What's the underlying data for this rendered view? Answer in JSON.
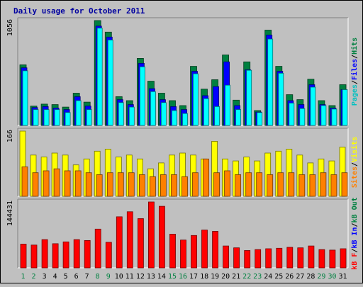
{
  "chart_data": {
    "type": "bar",
    "title": "Daily usage for October 2011",
    "categories": [
      "1",
      "2",
      "3",
      "4",
      "5",
      "6",
      "7",
      "8",
      "9",
      "10",
      "11",
      "12",
      "13",
      "14",
      "15",
      "16",
      "17",
      "18",
      "19",
      "20",
      "21",
      "22",
      "23",
      "24",
      "25",
      "26",
      "27",
      "28",
      "29",
      "30",
      "31"
    ],
    "weekend_days": [
      "1",
      "2",
      "8",
      "9",
      "15",
      "16",
      "22",
      "23",
      "29",
      "30"
    ],
    "panels": [
      {
        "id": "hits",
        "ymax_label": "1056",
        "ymax": 1056,
        "series": [
          {
            "name": "Hits",
            "color": "#008040",
            "values": [
              610,
              195,
              215,
              210,
              185,
              325,
              235,
              1056,
              940,
              290,
              250,
              675,
              445,
              325,
              250,
              200,
              595,
              365,
              460,
              710,
              255,
              640,
              150,
              960,
              595,
              310,
              260,
              465,
              250,
              200,
              410
            ]
          },
          {
            "name": "Files",
            "color": "#0000ff",
            "values": [
              580,
              180,
              190,
              175,
              160,
              290,
              195,
              1000,
              890,
              260,
              210,
              625,
              370,
              260,
              190,
              160,
              545,
              300,
              390,
              640,
              200,
              560,
              135,
              910,
              545,
              250,
              210,
              410,
              210,
              175,
              360
            ]
          },
          {
            "name": "Pages",
            "color": "#00ffff",
            "values": [
              550,
              160,
              160,
              160,
              130,
              250,
              160,
              980,
              860,
              230,
              185,
              590,
              340,
              230,
              150,
              120,
              520,
              270,
              190,
              405,
              160,
              555,
              130,
              870,
              525,
              225,
              170,
              385,
              200,
              165,
              360
            ]
          }
        ],
        "legend": [
          "Pages",
          "/",
          "Files",
          "/",
          "Hits"
        ],
        "legend_colors": [
          "#00c0c0",
          "#000000",
          "#0000ff",
          "#000000",
          "#008040"
        ]
      },
      {
        "id": "visits",
        "ymax_label": "166",
        "ymax": 166,
        "series": [
          {
            "name": "Visits",
            "color": "#ffff00",
            "values": [
              166,
              105,
              100,
              110,
              105,
              80,
              95,
              115,
              120,
              100,
              105,
              95,
              70,
              85,
              105,
              110,
              105,
              95,
              140,
              95,
              90,
              100,
              90,
              110,
              115,
              120,
              105,
              85,
              95,
              90,
              125
            ]
          },
          {
            "name": "Sites",
            "color": "#ff8000",
            "values": [
              75,
              60,
              65,
              70,
              65,
              65,
              60,
              55,
              60,
              60,
              60,
              55,
              50,
              55,
              55,
              50,
              60,
              95,
              60,
              65,
              55,
              60,
              60,
              55,
              60,
              60,
              55,
              55,
              60,
              55,
              60
            ]
          }
        ],
        "legend": [
          "Sites",
          "/",
          "Visits"
        ],
        "legend_colors": [
          "#ff8000",
          "#000000",
          "#ffff00"
        ]
      },
      {
        "id": "kbytes",
        "ymax_label": "144431",
        "ymax": 144431,
        "series": [
          {
            "name": "kB F",
            "color": "#ff0000",
            "values": [
              52000,
              50000,
              62000,
              53000,
              57000,
              62000,
              60000,
              85000,
              56000,
              112000,
              123000,
              108000,
              144431,
              135000,
              74000,
              61000,
              71000,
              83000,
              80000,
              48000,
              44000,
              38000,
              40000,
              42000,
              43000,
              45000,
              44000,
              48000,
              40000,
              39000,
              42000
            ]
          }
        ],
        "legend": [
          "kB F",
          "/",
          "kB In",
          "/",
          "kB Out"
        ],
        "legend_colors": [
          "#ff0000",
          "#000000",
          "#0000ff",
          "#000000",
          "#008040"
        ]
      }
    ],
    "legend_placement": "right-vertical",
    "grid": false
  }
}
